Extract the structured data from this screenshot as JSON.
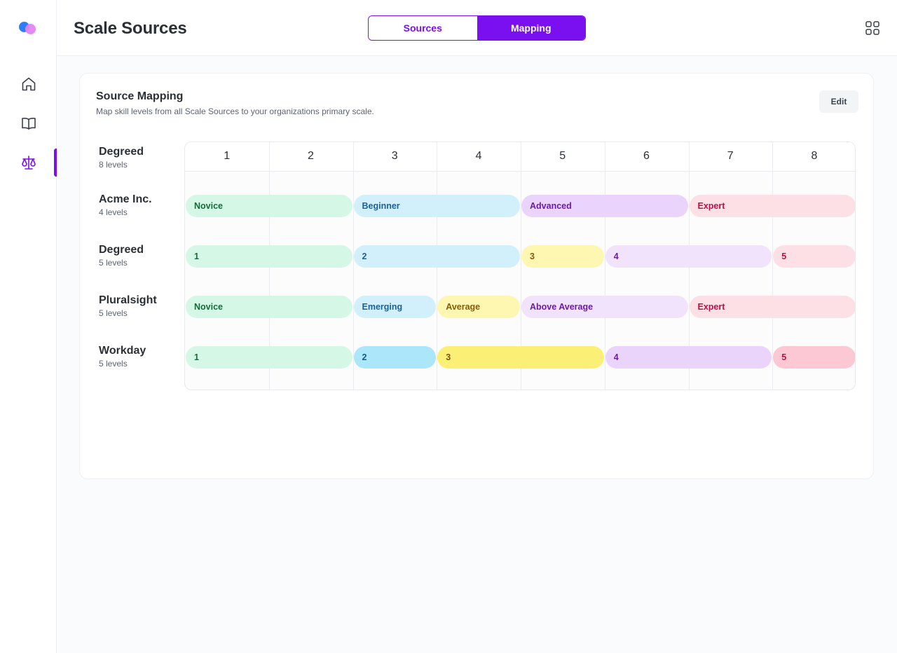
{
  "app": {
    "title": "Scale Sources"
  },
  "header": {
    "tabs": [
      {
        "label": "Sources",
        "active": false
      },
      {
        "label": "Mapping",
        "active": true
      }
    ]
  },
  "sidebar": {
    "items": [
      {
        "icon": "home-icon",
        "active": false
      },
      {
        "icon": "book-icon",
        "active": false
      },
      {
        "icon": "scale-icon",
        "active": true
      }
    ]
  },
  "card": {
    "title": "Source Mapping",
    "subtitle": "Map skill levels from all Scale Sources to your organizations primary scale.",
    "edit_label": "Edit"
  },
  "primary": {
    "name": "Degreed",
    "levels_text": "8 levels",
    "columns": [
      "1",
      "2",
      "3",
      "4",
      "5",
      "6",
      "7",
      "8"
    ]
  },
  "colors": {
    "accent": "#7a0ff0",
    "green": {
      "bg": "#d5f8e6",
      "fg": "#146c3a"
    },
    "blue": {
      "bg": "#d2f0fc",
      "fg": "#17639a"
    },
    "blue_strong": {
      "bg": "#ace6fb",
      "fg": "#115a8c"
    },
    "yellow": {
      "bg": "#fdf7b1",
      "fg": "#8a5a08"
    },
    "yellow_strong": {
      "bg": "#fcef75",
      "fg": "#7c5208"
    },
    "purple": {
      "bg": "#ebd4fb",
      "fg": "#6d1aa8"
    },
    "purple_light": {
      "bg": "#f1e3fc",
      "fg": "#6d1aa8"
    },
    "pink": {
      "bg": "#fde0e6",
      "fg": "#b4134a"
    },
    "pink_strong": {
      "bg": "#fcc8d4",
      "fg": "#b4134a"
    }
  },
  "sources": [
    {
      "name": "Acme Inc.",
      "levels_text": "4 levels",
      "levels": [
        {
          "label": "Novice",
          "start": 1,
          "end": 2,
          "color": "green"
        },
        {
          "label": "Beginner",
          "start": 3,
          "end": 4,
          "color": "blue"
        },
        {
          "label": "Advanced",
          "start": 5,
          "end": 6,
          "color": "purple"
        },
        {
          "label": "Expert",
          "start": 7,
          "end": 8,
          "color": "pink"
        }
      ]
    },
    {
      "name": "Degreed",
      "levels_text": "5 levels",
      "levels": [
        {
          "label": "1",
          "start": 1,
          "end": 2,
          "color": "green"
        },
        {
          "label": "2",
          "start": 3,
          "end": 4,
          "color": "blue"
        },
        {
          "label": "3",
          "start": 5,
          "end": 5,
          "color": "yellow"
        },
        {
          "label": "4",
          "start": 6,
          "end": 7,
          "color": "purple_light"
        },
        {
          "label": "5",
          "start": 8,
          "end": 8,
          "color": "pink"
        }
      ]
    },
    {
      "name": "Pluralsight",
      "levels_text": "5 levels",
      "levels": [
        {
          "label": "Novice",
          "start": 1,
          "end": 2,
          "color": "green"
        },
        {
          "label": "Emerging",
          "start": 3,
          "end": 3,
          "color": "blue"
        },
        {
          "label": "Average",
          "start": 4,
          "end": 4,
          "color": "yellow"
        },
        {
          "label": "Above Average",
          "start": 5,
          "end": 6,
          "color": "purple_light"
        },
        {
          "label": "Expert",
          "start": 7,
          "end": 8,
          "color": "pink"
        }
      ]
    },
    {
      "name": "Workday",
      "levels_text": "5 levels",
      "levels": [
        {
          "label": "1",
          "start": 1,
          "end": 2,
          "color": "green"
        },
        {
          "label": "2",
          "start": 3,
          "end": 3,
          "color": "blue_strong"
        },
        {
          "label": "3",
          "start": 4,
          "end": 5,
          "color": "yellow_strong"
        },
        {
          "label": "4",
          "start": 6,
          "end": 7,
          "color": "purple"
        },
        {
          "label": "5",
          "start": 8,
          "end": 8,
          "color": "pink_strong"
        }
      ]
    }
  ]
}
